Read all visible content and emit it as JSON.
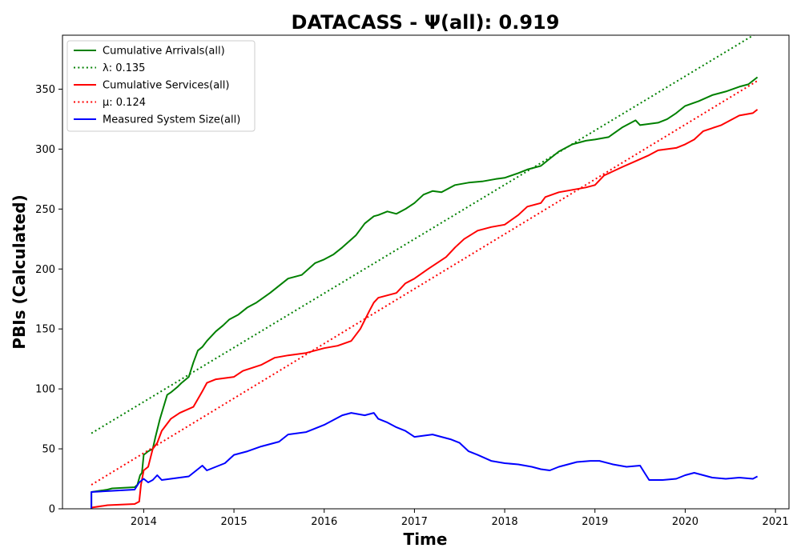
{
  "chart_data": {
    "type": "line",
    "title": "DATACASS -  Ψ(all): 0.919",
    "xlabel": "Time",
    "ylabel": "PBIs (Calculated)",
    "xlim": [
      2013.1,
      2021.15
    ],
    "ylim": [
      0,
      395
    ],
    "x_ticks": [
      2014,
      2015,
      2016,
      2017,
      2018,
      2019,
      2020,
      2021
    ],
    "x_tick_labels": [
      "2014",
      "2015",
      "2016",
      "2017",
      "2018",
      "2019",
      "2020",
      "2021"
    ],
    "y_ticks": [
      0,
      50,
      100,
      150,
      200,
      250,
      300,
      350
    ],
    "y_tick_labels": [
      "0",
      "50",
      "100",
      "150",
      "200",
      "250",
      "300",
      "350"
    ],
    "grid": false,
    "legend_position": "top-left",
    "series": [
      {
        "name": "Cumulative Arrivals(all)",
        "color": "#008000",
        "style": "solid",
        "x": [
          2013.42,
          2013.42,
          2013.6,
          2013.65,
          2013.9,
          2013.93,
          2013.96,
          2013.98,
          2014.0,
          2014.05,
          2014.1,
          2014.13,
          2014.18,
          2014.22,
          2014.26,
          2014.3,
          2014.38,
          2014.42,
          2014.5,
          2014.55,
          2014.6,
          2014.65,
          2014.7,
          2014.8,
          2014.88,
          2014.95,
          2015.05,
          2015.15,
          2015.25,
          2015.4,
          2015.5,
          2015.6,
          2015.75,
          2015.9,
          2016.0,
          2016.1,
          2016.2,
          2016.35,
          2016.45,
          2016.55,
          2016.6,
          2016.7,
          2016.8,
          2016.9,
          2017.0,
          2017.1,
          2017.2,
          2017.3,
          2017.45,
          2017.6,
          2017.75,
          2017.9,
          2018.0,
          2018.15,
          2018.25,
          2018.4,
          2018.5,
          2018.6,
          2018.75,
          2018.9,
          2019.0,
          2019.15,
          2019.3,
          2019.45,
          2019.5,
          2019.7,
          2019.8,
          2019.9,
          2020.0,
          2020.15,
          2020.3,
          2020.45,
          2020.6,
          2020.7,
          2020.8
        ],
        "y": [
          0,
          14,
          16,
          17,
          18,
          20,
          28,
          30,
          45,
          48,
          50,
          60,
          75,
          85,
          95,
          97,
          102,
          105,
          110,
          122,
          132,
          135,
          140,
          148,
          153,
          158,
          162,
          168,
          172,
          180,
          186,
          192,
          195,
          205,
          208,
          212,
          218,
          228,
          238,
          244,
          245,
          248,
          246,
          250,
          255,
          262,
          265,
          264,
          270,
          272,
          273,
          275,
          276,
          280,
          283,
          286,
          292,
          298,
          304,
          307,
          308,
          310,
          318,
          324,
          320,
          322,
          325,
          330,
          336,
          340,
          345,
          348,
          352,
          354,
          360
        ]
      },
      {
        "name": "λ: 0.135",
        "color": "#008000",
        "style": "dotted",
        "x": [
          2013.42,
          2020.8
        ],
        "y": [
          63,
          397
        ]
      },
      {
        "name": "Cumulative Services(all)",
        "color": "#ff0000",
        "style": "solid",
        "x": [
          2013.42,
          2013.6,
          2013.9,
          2013.95,
          2013.97,
          2014.0,
          2014.05,
          2014.1,
          2014.15,
          2014.2,
          2014.3,
          2014.4,
          2014.55,
          2014.65,
          2014.7,
          2014.8,
          2015.0,
          2015.1,
          2015.3,
          2015.45,
          2015.6,
          2015.8,
          2016.0,
          2016.15,
          2016.3,
          2016.4,
          2016.5,
          2016.55,
          2016.6,
          2016.8,
          2016.9,
          2017.0,
          2017.15,
          2017.25,
          2017.35,
          2017.45,
          2017.55,
          2017.7,
          2017.85,
          2018.0,
          2018.15,
          2018.25,
          2018.4,
          2018.45,
          2018.6,
          2018.75,
          2018.9,
          2019.0,
          2019.1,
          2019.3,
          2019.45,
          2019.6,
          2019.7,
          2019.9,
          2020.0,
          2020.1,
          2020.2,
          2020.4,
          2020.6,
          2020.75,
          2020.8
        ],
        "y": [
          1,
          3,
          4,
          6,
          20,
          32,
          35,
          50,
          55,
          65,
          75,
          80,
          85,
          98,
          105,
          108,
          110,
          115,
          120,
          126,
          128,
          130,
          134,
          136,
          140,
          150,
          165,
          172,
          176,
          180,
          188,
          192,
          200,
          205,
          210,
          218,
          225,
          232,
          235,
          237,
          245,
          252,
          255,
          260,
          264,
          266,
          268,
          270,
          278,
          285,
          290,
          295,
          299,
          301,
          304,
          308,
          315,
          320,
          328,
          330,
          333
        ]
      },
      {
        "name": "μ: 0.124",
        "color": "#ff0000",
        "style": "dotted",
        "x": [
          2013.42,
          2020.8
        ],
        "y": [
          20,
          357
        ]
      },
      {
        "name": "Measured System Size(all)",
        "color": "#0000ff",
        "style": "solid",
        "x": [
          2013.42,
          2013.42,
          2013.9,
          2013.95,
          2014.0,
          2014.05,
          2014.1,
          2014.15,
          2014.2,
          2014.3,
          2014.5,
          2014.6,
          2014.65,
          2014.7,
          2014.8,
          2014.9,
          2015.0,
          2015.15,
          2015.3,
          2015.5,
          2015.6,
          2015.8,
          2015.9,
          2016.0,
          2016.1,
          2016.2,
          2016.3,
          2016.45,
          2016.55,
          2016.6,
          2016.7,
          2016.8,
          2016.9,
          2017.0,
          2017.2,
          2017.3,
          2017.4,
          2017.5,
          2017.6,
          2017.7,
          2017.85,
          2018.0,
          2018.15,
          2018.3,
          2018.4,
          2018.5,
          2018.6,
          2018.7,
          2018.8,
          2018.95,
          2019.05,
          2019.2,
          2019.35,
          2019.5,
          2019.55,
          2019.6,
          2019.75,
          2019.9,
          2020.0,
          2020.1,
          2020.2,
          2020.3,
          2020.45,
          2020.6,
          2020.75,
          2020.8
        ],
        "y": [
          0,
          14,
          16,
          22,
          25,
          22,
          24,
          28,
          24,
          25,
          27,
          33,
          36,
          32,
          35,
          38,
          45,
          48,
          52,
          56,
          62,
          64,
          67,
          70,
          74,
          78,
          80,
          78,
          80,
          75,
          72,
          68,
          65,
          60,
          62,
          60,
          58,
          55,
          48,
          45,
          40,
          38,
          37,
          35,
          33,
          32,
          35,
          37,
          39,
          40,
          40,
          37,
          35,
          36,
          30,
          24,
          24,
          25,
          28,
          30,
          28,
          26,
          25,
          26,
          25,
          27
        ]
      }
    ]
  }
}
